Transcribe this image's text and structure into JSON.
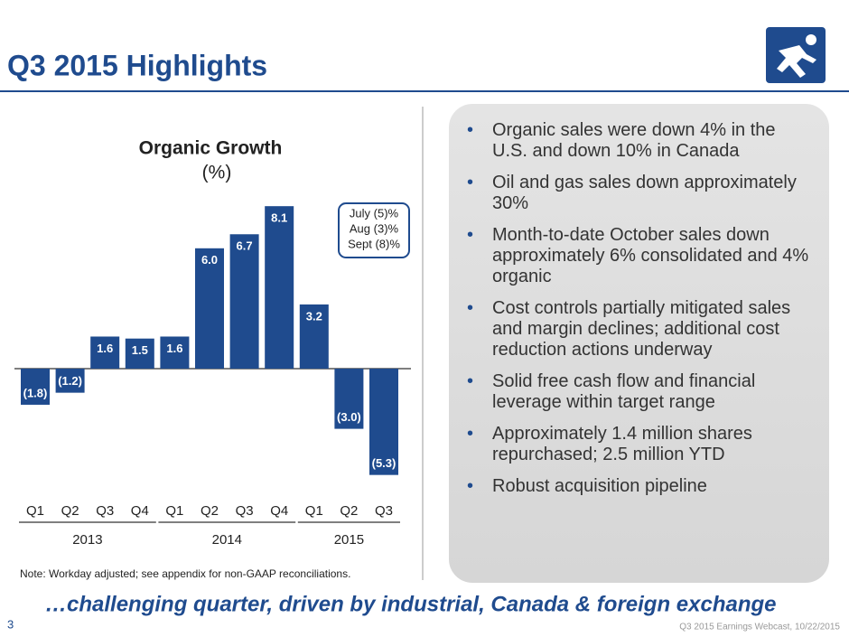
{
  "header": {
    "title": "Q3 2015 Highlights"
  },
  "chart_data": {
    "type": "bar",
    "title": "Organic Growth",
    "subtitle": "(%)",
    "categories": [
      "Q1",
      "Q2",
      "Q3",
      "Q4",
      "Q1",
      "Q2",
      "Q3",
      "Q4",
      "Q1",
      "Q2",
      "Q3"
    ],
    "groups": [
      "2013",
      "2014",
      "2015"
    ],
    "values": [
      -1.8,
      -1.2,
      1.6,
      1.5,
      1.6,
      6.0,
      6.7,
      8.1,
      3.2,
      -3.0,
      -5.3
    ],
    "value_labels": [
      "(1.8)",
      "(1.2)",
      "1.6",
      "1.5",
      "1.6",
      "6.0",
      "6.7",
      "8.1",
      "3.2",
      "(3.0)",
      "(5.3)"
    ],
    "color": "#1f4b8e",
    "annotations": [
      "July (5)%",
      "Aug (3)%",
      "Sept (8)%"
    ]
  },
  "note": "Note:  Workday adjusted; see appendix for non-GAAP reconciliations.",
  "bullets": [
    "Organic sales were down 4% in the U.S. and down 10% in Canada",
    "Oil and gas sales down approximately 30%",
    "Month-to-date October sales down approximately 6% consolidated and 4% organic",
    "Cost controls partially mitigated sales and margin declines; additional cost reduction actions underway",
    "Solid free cash flow and financial leverage within target range",
    "Approximately 1.4 million shares repurchased; 2.5 million YTD",
    "Robust acquisition pipeline"
  ],
  "tagline": "…challenging quarter, driven by industrial, Canada & foreign exchange",
  "page_number": "3",
  "footer": "Q3 2015 Earnings Webcast, 10/22/2015"
}
